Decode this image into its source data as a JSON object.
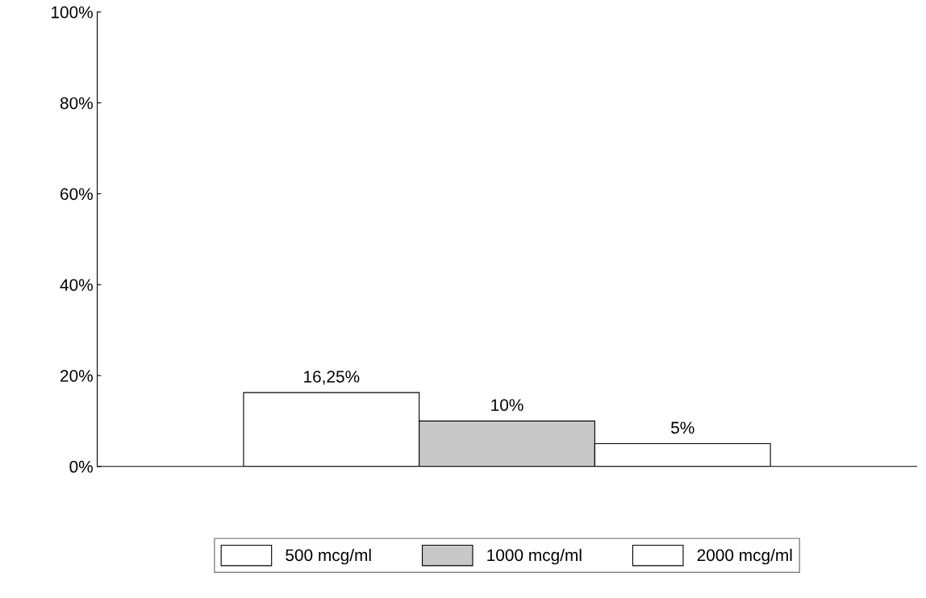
{
  "chart_data": {
    "type": "bar",
    "categories": [
      null
    ],
    "series": [
      {
        "name": "500 mcg/ml",
        "color": "#ffffff",
        "values": [
          16.25
        ],
        "value_labels": [
          "16,25%"
        ]
      },
      {
        "name": "1000 mcg/ml",
        "color": "#c8c8c8",
        "values": [
          10
        ],
        "value_labels": [
          "10%"
        ]
      },
      {
        "name": "2000 mcg/ml",
        "color": "#ffffff",
        "values": [
          5
        ],
        "value_labels": [
          "5%"
        ]
      }
    ],
    "ylim": [
      0,
      100
    ],
    "yticks": [
      {
        "value": 0,
        "label": "0%"
      },
      {
        "value": 20,
        "label": "20%"
      },
      {
        "value": 40,
        "label": "40%"
      },
      {
        "value": 60,
        "label": "60%"
      },
      {
        "value": 80,
        "label": "80%"
      },
      {
        "value": 100,
        "label": "100%"
      }
    ],
    "grid": false,
    "legend": "bottom",
    "tick_labels": "y"
  }
}
